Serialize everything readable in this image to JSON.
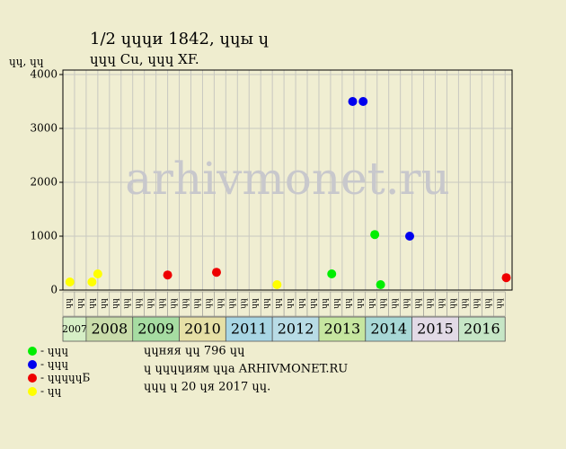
{
  "chart_data": {
    "type": "scatter",
    "title": "1/2 ɥɥɥи 1842, ɥɥы ɥ",
    "subtitle": "ɥɥɥ Cu, ɥɥɥ XF.",
    "y_label": "ɥɥ, ɥɥ",
    "watermark": "arhivmonet.ru",
    "ylim": [
      0,
      4000
    ],
    "yticks": [
      0,
      1000,
      2000,
      3000,
      4000
    ],
    "xlim": [
      0,
      38.6
    ],
    "grid": true,
    "columns": [
      "ɥɥ",
      "ɥɥ",
      "ɥɥ",
      "ɥɥ",
      "ɥɥ",
      "ɥɥ",
      "ɥɥ",
      "ɥɥ",
      "ɥɥ",
      "ɥɥ",
      "ɥɥ",
      "ɥɥ",
      "ɥɥ",
      "ɥɥ",
      "ɥɥ",
      "ɥɥ",
      "ɥɥ",
      "ɥɥ",
      "ɥɥ",
      "ɥɥ",
      "ɥɥ",
      "ɥɥ",
      "ɥɥ",
      "ɥɥ",
      "ɥɥ",
      "ɥɥ",
      "ɥɥ",
      "ɥɥ",
      "ɥɥ",
      "ɥɥ",
      "ɥɥ",
      "ɥɥ",
      "ɥɥ",
      "ɥɥ",
      "ɥɥ",
      "ɥɥ",
      "ɥɥ",
      "ɥɥ"
    ],
    "years": [
      {
        "label": "2007",
        "color": "#d6efc6"
      },
      {
        "label": "2008",
        "color": "#c9dcaa"
      },
      {
        "label": "2009",
        "color": "#a6dca2"
      },
      {
        "label": "2010",
        "color": "#e6e0a6"
      },
      {
        "label": "2011",
        "color": "#a8d6e4"
      },
      {
        "label": "2012",
        "color": "#b8dce6"
      },
      {
        "label": "2013",
        "color": "#c6e6a0"
      },
      {
        "label": "2014",
        "color": "#a8d8d6"
      },
      {
        "label": "2015",
        "color": "#e2dae6"
      },
      {
        "label": "2016",
        "color": "#c6e6c6"
      }
    ],
    "series": [
      {
        "name": "- ɥɥɥ",
        "color": "#00ee00",
        "x": [
          23.1,
          26.8,
          27.3
        ],
        "values": [
          300,
          1030,
          100
        ]
      },
      {
        "name": "- ɥɥɥ",
        "color": "#0000ee",
        "x": [
          24.9,
          25.8,
          29.8
        ],
        "values": [
          3500,
          3500,
          1000
        ]
      },
      {
        "name": "- ɥɥɥɥɥБ",
        "color": "#ee0000",
        "x": [
          9.0,
          13.2,
          38.1
        ],
        "values": [
          280,
          330,
          230
        ]
      },
      {
        "name": "- ɥɥ",
        "color": "#ffff00",
        "x": [
          0.6,
          2.5,
          3.0,
          18.4
        ],
        "values": [
          150,
          150,
          300,
          100
        ]
      }
    ],
    "notes": [
      "ɥɥняя ɥɥ 796 ɥɥ",
      "ɥ ɥɥɥɥиям ɥɥа ARHIVMONET.RU",
      "ɥɥɥ ɥ 20 ɥя 2017 ɥɥ."
    ]
  }
}
